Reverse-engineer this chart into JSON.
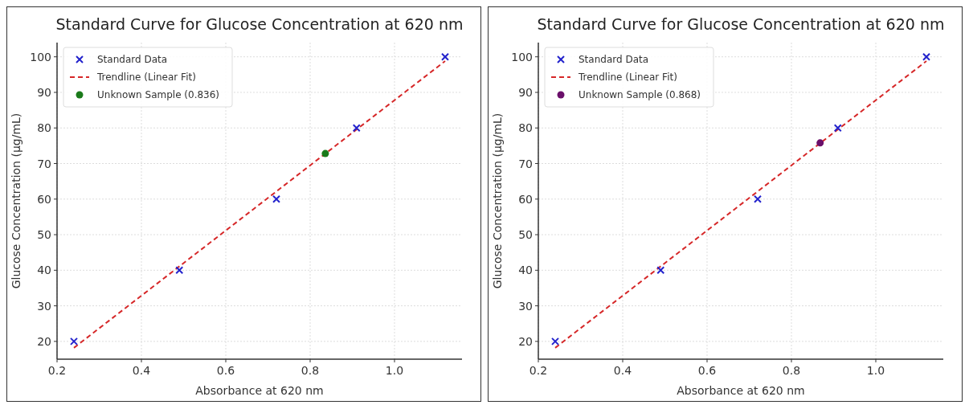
{
  "chart_data": [
    {
      "type": "scatter",
      "title": "Standard Curve for Glucose Concentration at 620 nm",
      "xlabel": "Absorbance at 620 nm",
      "ylabel": "Glucose Concentration (µg/mL)",
      "xlim": [
        0.2,
        1.16
      ],
      "ylim": [
        15,
        104
      ],
      "xticks": [
        {
          "value": 0.2,
          "label": "0.2"
        },
        {
          "value": 0.4,
          "label": "0.4"
        },
        {
          "value": 0.6,
          "label": "0.6"
        },
        {
          "value": 0.8,
          "label": "0.8"
        },
        {
          "value": 1.0,
          "label": "1.0"
        }
      ],
      "yticks": [
        20,
        30,
        40,
        50,
        60,
        70,
        80,
        90,
        100
      ],
      "grid": true,
      "legend": "top left",
      "series": [
        {
          "name": "Standard Data",
          "marker": "cross",
          "color": "#2222cc",
          "x": [
            0.24,
            0.49,
            0.72,
            0.91,
            1.12
          ],
          "values": [
            20,
            40,
            60,
            80,
            100
          ]
        },
        {
          "name": "Trendline (Linear Fit)",
          "type": "line",
          "marker": "none",
          "line_style": "dashed",
          "color": "#d62728",
          "x": [
            0.24,
            1.12
          ],
          "values": [
            18.2,
            98.8
          ]
        },
        {
          "name": "Unknown Sample (0.836)",
          "marker": "circle",
          "color": "#1a7a1a",
          "x": [
            0.836
          ],
          "values": [
            72.8
          ]
        }
      ]
    },
    {
      "type": "scatter",
      "title": "Standard Curve for Glucose Concentration at 620 nm",
      "xlabel": "Absorbance at 620 nm",
      "ylabel": "Glucose Concentration (µg/mL)",
      "xlim": [
        0.2,
        1.16
      ],
      "ylim": [
        15,
        104
      ],
      "xticks": [
        {
          "value": 0.2,
          "label": "0.2"
        },
        {
          "value": 0.4,
          "label": "0.4"
        },
        {
          "value": 0.6,
          "label": "0.6"
        },
        {
          "value": 0.8,
          "label": "0.8"
        },
        {
          "value": 1.0,
          "label": "1.0"
        }
      ],
      "yticks": [
        20,
        30,
        40,
        50,
        60,
        70,
        80,
        90,
        100
      ],
      "grid": true,
      "legend": "top left",
      "series": [
        {
          "name": "Standard Data",
          "marker": "cross",
          "color": "#2222cc",
          "x": [
            0.24,
            0.49,
            0.72,
            0.91,
            1.12
          ],
          "values": [
            20,
            40,
            60,
            80,
            100
          ]
        },
        {
          "name": "Trendline (Linear Fit)",
          "type": "line",
          "marker": "none",
          "line_style": "dashed",
          "color": "#d62728",
          "x": [
            0.24,
            1.12
          ],
          "values": [
            18.2,
            98.8
          ]
        },
        {
          "name": "Unknown Sample (0.868)",
          "marker": "circle",
          "color": "#6a0f6a",
          "x": [
            0.868
          ],
          "values": [
            75.8
          ]
        }
      ]
    }
  ]
}
